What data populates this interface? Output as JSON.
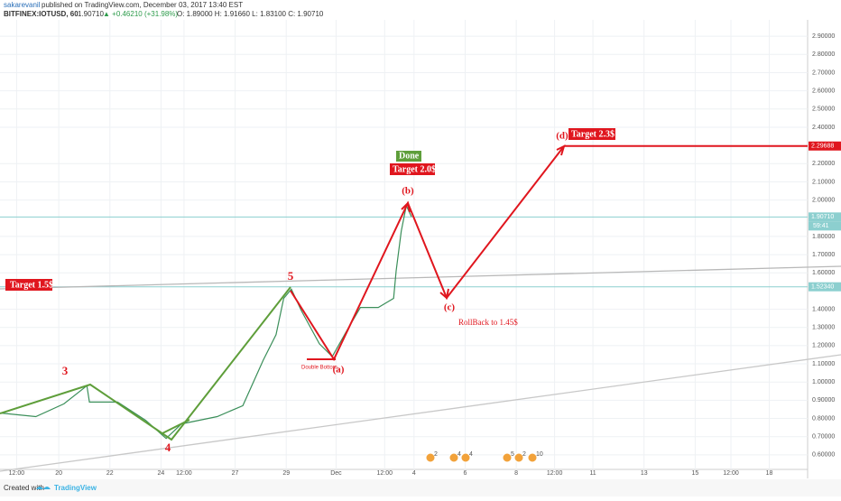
{
  "header": {
    "author": "sakarevanil",
    "published": "published on TradingView.com, December 03, 2017 13:40 EST",
    "symbol": "BITFINEX:IOTUSD, 60",
    "last": "1.90710",
    "change": "▲ +0.46210 (+31.98%)",
    "ohlc": "O: 1.89000 H: 1.91660 L: 1.83100 C: 1.90710"
  },
  "chart_data": {
    "type": "line",
    "color": "#3b8f5a",
    "x": [
      -0.3,
      1.1,
      2.2,
      3.1,
      3.2,
      4.3,
      5.4,
      6.2,
      6.8,
      8.2,
      9.2,
      10.0,
      10.5,
      10.8,
      11.1,
      11.5,
      12.2,
      12.7,
      13.3,
      13.8,
      14.5,
      15.1,
      15.2,
      15.4,
      15.6,
      15.8
    ],
    "values": [
      0.83,
      0.81,
      0.88,
      0.98,
      0.89,
      0.89,
      0.79,
      0.69,
      0.77,
      0.81,
      0.87,
      1.12,
      1.26,
      1.46,
      1.51,
      1.39,
      1.21,
      1.14,
      1.29,
      1.41,
      1.41,
      1.46,
      1.61,
      1.83,
      1.97,
      1.9071
    ],
    "xlim": [
      -0.3,
      31.3
    ],
    "ylim": [
      0.52,
      2.99
    ],
    "xticks": [
      {
        "value": 0.35,
        "label": "12:00"
      },
      {
        "value": 2,
        "label": "20"
      },
      {
        "value": 4,
        "label": "22"
      },
      {
        "value": 6,
        "label": "24"
      },
      {
        "value": 6.9,
        "label": "12:00"
      },
      {
        "value": 8.9,
        "label": "27"
      },
      {
        "value": 10.9,
        "label": "29"
      },
      {
        "value": 12.85,
        "label": "Dec"
      },
      {
        "value": 14.75,
        "label": "12:00"
      },
      {
        "value": 15.9,
        "label": "4"
      },
      {
        "value": 17.9,
        "label": "6"
      },
      {
        "value": 19.9,
        "label": "8"
      },
      {
        "value": 21.4,
        "label": "12:00"
      },
      {
        "value": 22.9,
        "label": "11"
      },
      {
        "value": 24.9,
        "label": "13"
      },
      {
        "value": 26.9,
        "label": "15"
      },
      {
        "value": 28.3,
        "label": "12:00"
      },
      {
        "value": 29.8,
        "label": "18"
      }
    ],
    "yticks": [
      {
        "value": 2.9,
        "label": "2.90000"
      },
      {
        "value": 2.8,
        "label": "2.80000"
      },
      {
        "value": 2.7,
        "label": "2.70000"
      },
      {
        "value": 2.6,
        "label": "2.60000"
      },
      {
        "value": 2.5,
        "label": "2.50000"
      },
      {
        "value": 2.4,
        "label": "2.40000"
      },
      {
        "value": 2.2,
        "label": "2.20000"
      },
      {
        "value": 2.1,
        "label": "2.10000"
      },
      {
        "value": 2.0,
        "label": "2.00000"
      },
      {
        "value": 1.8,
        "label": "1.80000"
      },
      {
        "value": 1.7,
        "label": "1.70000"
      },
      {
        "value": 1.6,
        "label": "1.60000"
      },
      {
        "value": 1.4,
        "label": "1.40000"
      },
      {
        "value": 1.3,
        "label": "1.30000"
      },
      {
        "value": 1.2,
        "label": "1.20000"
      },
      {
        "value": 1.1,
        "label": "1.10000"
      },
      {
        "value": 1.0,
        "label": "1.00000"
      },
      {
        "value": 0.9,
        "label": "0.90000"
      },
      {
        "value": 0.8,
        "label": "0.80000"
      },
      {
        "value": 0.7,
        "label": "0.70000"
      },
      {
        "value": 0.6,
        "label": "0.60000"
      }
    ],
    "grid": true,
    "price_lines": [
      {
        "value": 2.29688,
        "label": "2.29688",
        "color": "#e0161e"
      },
      {
        "value": 1.9071,
        "label": "1.90710",
        "color": "#8ccfcf"
      },
      {
        "value": 1.5234,
        "label": "1.52340",
        "color": "#8ccfcf"
      }
    ],
    "countdown": "59:41",
    "annotations": {
      "w3": "3",
      "w4": "4",
      "w5": "5",
      "wa": "(a)",
      "wb": "(b)",
      "wc": "(c)",
      "wd": "(d)",
      "t15": "Target 1.5$",
      "done": "Done !",
      "t20": "Target 2.0$",
      "t23": "Target 2.3$",
      "rollback": "RollBack to 1.45$",
      "double": "Double Bottom"
    },
    "events": [
      "2",
      "4",
      "4",
      "5",
      "2",
      "10"
    ]
  },
  "footer": {
    "created": "Created with",
    "brand": "TradingView"
  }
}
